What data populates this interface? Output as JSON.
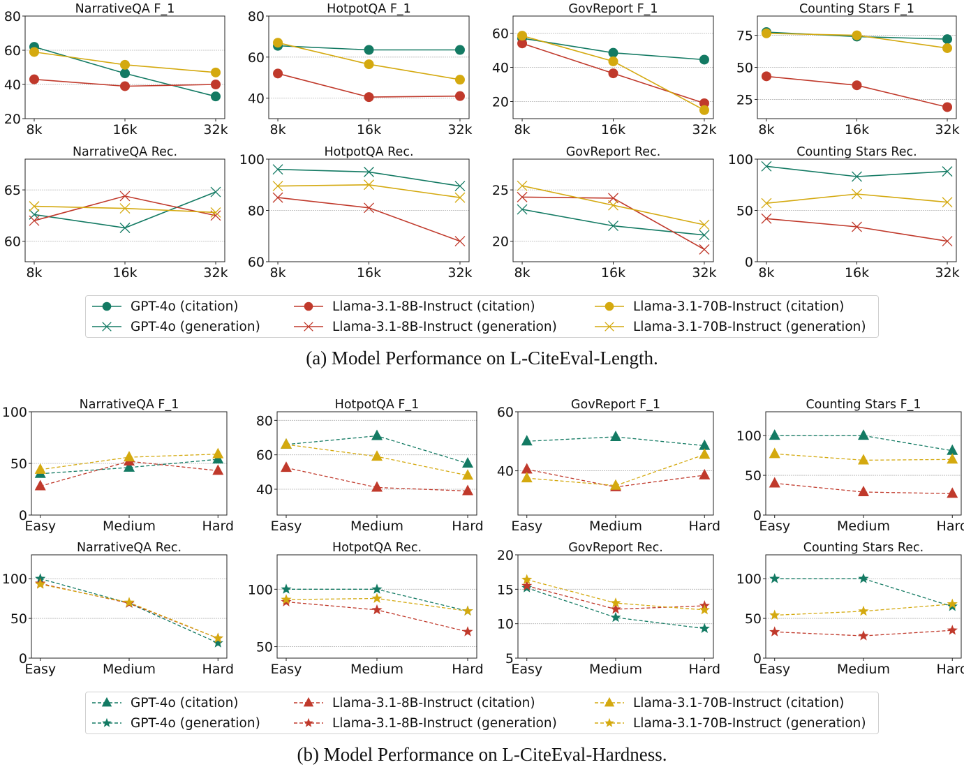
{
  "colors": {
    "gpt4o": "#137a63",
    "llama8b": "#c0392b",
    "llama70b": "#d4a90f",
    "grid": "#b0b0b0"
  },
  "sections": [
    {
      "caption": "(a)  Model Performance on L-CiteEval-Length.",
      "legend": [
        {
          "label": "GPT-4o (citation)",
          "model": "gpt4o",
          "marker": "circle",
          "line": "solid"
        },
        {
          "label": "Llama-3.1-8B-Instruct (citation)",
          "model": "llama8b",
          "marker": "circle",
          "line": "solid"
        },
        {
          "label": "Llama-3.1-70B-Instruct (citation)",
          "model": "llama70b",
          "marker": "circle",
          "line": "solid"
        },
        {
          "label": "GPT-4o (generation)",
          "model": "gpt4o",
          "marker": "x",
          "line": "solid"
        },
        {
          "label": "Llama-3.1-8B-Instruct (generation)",
          "model": "llama8b",
          "marker": "x",
          "line": "solid"
        },
        {
          "label": "Llama-3.1-70B-Instruct (generation)",
          "model": "llama70b",
          "marker": "x",
          "line": "solid"
        }
      ]
    },
    {
      "caption": "(b)  Model Performance on L-CiteEval-Hardness.",
      "legend": [
        {
          "label": "GPT-4o (citation)",
          "model": "gpt4o",
          "marker": "triangle",
          "line": "dashed"
        },
        {
          "label": "Llama-3.1-8B-Instruct (citation)",
          "model": "llama8b",
          "marker": "triangle",
          "line": "dashed"
        },
        {
          "label": "Llama-3.1-70B-Instruct (citation)",
          "model": "llama70b",
          "marker": "triangle",
          "line": "dashed"
        },
        {
          "label": "GPT-4o (generation)",
          "model": "gpt4o",
          "marker": "star",
          "line": "dashed"
        },
        {
          "label": "Llama-3.1-8B-Instruct (generation)",
          "model": "llama8b",
          "marker": "star",
          "line": "dashed"
        },
        {
          "label": "Llama-3.1-70B-Instruct (generation)",
          "model": "llama70b",
          "marker": "star",
          "line": "dashed"
        }
      ]
    }
  ],
  "chart_data": [
    {
      "type": "line",
      "title": "NarrativeQA F_1",
      "categories": [
        "8k",
        "16k",
        "32k"
      ],
      "ylim": [
        20,
        80
      ],
      "yticks": [
        20,
        40,
        60,
        80
      ],
      "grid": true,
      "marker": "circle",
      "line": "solid",
      "series": [
        {
          "name": "GPT-4o (citation)",
          "model": "gpt4o",
          "values": [
            62,
            46.5,
            33
          ]
        },
        {
          "name": "Llama-3.1-8B-Instruct (citation)",
          "model": "llama8b",
          "values": [
            43,
            39,
            40
          ]
        },
        {
          "name": "Llama-3.1-70B-Instruct (citation)",
          "model": "llama70b",
          "values": [
            59,
            51.5,
            47
          ]
        }
      ]
    },
    {
      "type": "line",
      "title": "HotpotQA F_1",
      "categories": [
        "8k",
        "16k",
        "32k"
      ],
      "ylim": [
        30,
        80
      ],
      "yticks": [
        40,
        60,
        80
      ],
      "grid": true,
      "marker": "circle",
      "line": "solid",
      "series": [
        {
          "name": "GPT-4o (citation)",
          "model": "gpt4o",
          "values": [
            65.5,
            63.5,
            63.5
          ]
        },
        {
          "name": "Llama-3.1-8B-Instruct (citation)",
          "model": "llama8b",
          "values": [
            52,
            40.5,
            41
          ]
        },
        {
          "name": "Llama-3.1-70B-Instruct (citation)",
          "model": "llama70b",
          "values": [
            67,
            56.5,
            49
          ]
        }
      ]
    },
    {
      "type": "line",
      "title": "GovReport F_1",
      "categories": [
        "8k",
        "16k",
        "32k"
      ],
      "ylim": [
        10,
        70
      ],
      "yticks": [
        20,
        40,
        60
      ],
      "grid": true,
      "marker": "circle",
      "line": "solid",
      "series": [
        {
          "name": "GPT-4o (citation)",
          "model": "gpt4o",
          "values": [
            57,
            48.5,
            44.5
          ]
        },
        {
          "name": "Llama-3.1-8B-Instruct (citation)",
          "model": "llama8b",
          "values": [
            54,
            36.5,
            19
          ]
        },
        {
          "name": "Llama-3.1-70B-Instruct (citation)",
          "model": "llama70b",
          "values": [
            58.5,
            43.5,
            15
          ]
        }
      ]
    },
    {
      "type": "line",
      "title": "Counting Stars F_1",
      "categories": [
        "8k",
        "16k",
        "32k"
      ],
      "ylim": [
        10,
        90
      ],
      "yticks": [
        25,
        50,
        75
      ],
      "grid": true,
      "marker": "circle",
      "line": "solid",
      "series": [
        {
          "name": "GPT-4o (citation)",
          "model": "gpt4o",
          "values": [
            77.5,
            74,
            72
          ]
        },
        {
          "name": "Llama-3.1-8B-Instruct (citation)",
          "model": "llama8b",
          "values": [
            43,
            36,
            19
          ]
        },
        {
          "name": "Llama-3.1-70B-Instruct (citation)",
          "model": "llama70b",
          "values": [
            76.5,
            75,
            65
          ]
        }
      ]
    },
    {
      "type": "line",
      "title": "NarrativeQA Rec.",
      "categories": [
        "8k",
        "16k",
        "32k"
      ],
      "ylim": [
        58,
        68
      ],
      "yticks": [
        60,
        65
      ],
      "grid": true,
      "marker": "x",
      "line": "solid",
      "series": [
        {
          "name": "GPT-4o (generation)",
          "model": "gpt4o",
          "values": [
            62.6,
            61.3,
            64.8
          ]
        },
        {
          "name": "Llama-3.1-8B-Instruct (generation)",
          "model": "llama8b",
          "values": [
            62,
            64.4,
            62.5
          ]
        },
        {
          "name": "Llama-3.1-70B-Instruct (generation)",
          "model": "llama70b",
          "values": [
            63.4,
            63.2,
            62.8
          ]
        }
      ]
    },
    {
      "type": "line",
      "title": "HotpotQA Rec.",
      "categories": [
        "8k",
        "16k",
        "32k"
      ],
      "ylim": [
        60,
        100
      ],
      "yticks": [
        60,
        80,
        100
      ],
      "grid": true,
      "marker": "x",
      "line": "solid",
      "series": [
        {
          "name": "GPT-4o (generation)",
          "model": "gpt4o",
          "values": [
            96,
            95,
            89.5
          ]
        },
        {
          "name": "Llama-3.1-8B-Instruct (generation)",
          "model": "llama8b",
          "values": [
            85,
            81,
            68
          ]
        },
        {
          "name": "Llama-3.1-70B-Instruct (generation)",
          "model": "llama70b",
          "values": [
            89.5,
            90,
            85
          ]
        }
      ]
    },
    {
      "type": "line",
      "title": "GovReport Rec.",
      "categories": [
        "8k",
        "16k",
        "32k"
      ],
      "ylim": [
        18,
        28
      ],
      "yticks": [
        20,
        25
      ],
      "grid": true,
      "marker": "x",
      "line": "solid",
      "series": [
        {
          "name": "GPT-4o (generation)",
          "model": "gpt4o",
          "values": [
            23.1,
            21.5,
            20.6
          ]
        },
        {
          "name": "Llama-3.1-8B-Instruct (generation)",
          "model": "llama8b",
          "values": [
            24.3,
            24.2,
            19.2
          ]
        },
        {
          "name": "Llama-3.1-70B-Instruct (generation)",
          "model": "llama70b",
          "values": [
            25.4,
            23.5,
            21.6
          ]
        }
      ]
    },
    {
      "type": "line",
      "title": "Counting Stars Rec.",
      "categories": [
        "8k",
        "16k",
        "32k"
      ],
      "ylim": [
        0,
        100
      ],
      "yticks": [
        0,
        50,
        100
      ],
      "grid": true,
      "marker": "x",
      "line": "solid",
      "series": [
        {
          "name": "GPT-4o (generation)",
          "model": "gpt4o",
          "values": [
            93,
            83,
            88
          ]
        },
        {
          "name": "Llama-3.1-8B-Instruct (generation)",
          "model": "llama8b",
          "values": [
            42,
            34,
            20
          ]
        },
        {
          "name": "Llama-3.1-70B-Instruct (generation)",
          "model": "llama70b",
          "values": [
            57,
            66,
            58
          ]
        }
      ]
    },
    {
      "type": "line",
      "title": "NarrativeQA F_1",
      "categories": [
        "Easy",
        "Medium",
        "Hard"
      ],
      "ylim": [
        0,
        100
      ],
      "yticks": [
        0,
        50,
        100
      ],
      "grid": true,
      "marker": "triangle",
      "line": "dashed",
      "series": [
        {
          "name": "GPT-4o (citation)",
          "model": "gpt4o",
          "values": [
            40,
            46,
            54
          ]
        },
        {
          "name": "Llama-3.1-8B-Instruct (citation)",
          "model": "llama8b",
          "values": [
            28,
            52,
            43
          ]
        },
        {
          "name": "Llama-3.1-70B-Instruct (citation)",
          "model": "llama70b",
          "values": [
            44,
            56,
            59
          ]
        }
      ]
    },
    {
      "type": "line",
      "title": "HotpotQA F_1",
      "categories": [
        "Easy",
        "Medium",
        "Hard"
      ],
      "ylim": [
        25,
        85
      ],
      "yticks": [
        40,
        60,
        80
      ],
      "grid": true,
      "marker": "triangle",
      "line": "dashed",
      "series": [
        {
          "name": "GPT-4o (citation)",
          "model": "gpt4o",
          "values": [
            66,
            71,
            55
          ]
        },
        {
          "name": "Llama-3.1-8B-Instruct (citation)",
          "model": "llama8b",
          "values": [
            52.5,
            41,
            39
          ]
        },
        {
          "name": "Llama-3.1-70B-Instruct (citation)",
          "model": "llama70b",
          "values": [
            66,
            59,
            48
          ]
        }
      ]
    },
    {
      "type": "line",
      "title": "GovReport F_1",
      "categories": [
        "Easy",
        "Medium",
        "Hard"
      ],
      "ylim": [
        25,
        60
      ],
      "yticks": [
        40,
        60
      ],
      "grid": true,
      "marker": "triangle",
      "line": "dashed",
      "series": [
        {
          "name": "GPT-4o (citation)",
          "model": "gpt4o",
          "values": [
            50,
            51.5,
            48.5
          ]
        },
        {
          "name": "Llama-3.1-8B-Instruct (citation)",
          "model": "llama8b",
          "values": [
            40.5,
            34.5,
            38.5
          ]
        },
        {
          "name": "Llama-3.1-70B-Instruct (citation)",
          "model": "llama70b",
          "values": [
            37.5,
            35,
            45.5
          ]
        }
      ]
    },
    {
      "type": "line",
      "title": "Counting Stars F_1",
      "categories": [
        "Easy",
        "Medium",
        "Hard"
      ],
      "ylim": [
        0,
        130
      ],
      "yticks": [
        0,
        50,
        100
      ],
      "grid": true,
      "marker": "triangle",
      "line": "dashed",
      "series": [
        {
          "name": "GPT-4o (citation)",
          "model": "gpt4o",
          "values": [
            100,
            100,
            81
          ]
        },
        {
          "name": "Llama-3.1-8B-Instruct (citation)",
          "model": "llama8b",
          "values": [
            40,
            29,
            27
          ]
        },
        {
          "name": "Llama-3.1-70B-Instruct (citation)",
          "model": "llama70b",
          "values": [
            77,
            69,
            70
          ]
        }
      ]
    },
    {
      "type": "line",
      "title": "NarrativeQA Rec.",
      "categories": [
        "Easy",
        "Medium",
        "Hard"
      ],
      "ylim": [
        0,
        130
      ],
      "yticks": [
        0,
        50,
        100
      ],
      "grid": true,
      "marker": "star",
      "line": "dashed",
      "series": [
        {
          "name": "GPT-4o (generation)",
          "model": "gpt4o",
          "values": [
            100,
            69,
            19
          ]
        },
        {
          "name": "Llama-3.1-8B-Instruct (generation)",
          "model": "llama8b",
          "values": [
            94,
            69,
            25
          ]
        },
        {
          "name": "Llama-3.1-70B-Instruct (generation)",
          "model": "llama70b",
          "values": [
            93,
            70,
            25
          ]
        }
      ]
    },
    {
      "type": "line",
      "title": "HotpotQA Rec.",
      "categories": [
        "Easy",
        "Medium",
        "Hard"
      ],
      "ylim": [
        40,
        130
      ],
      "yticks": [
        50,
        100
      ],
      "grid": true,
      "marker": "star",
      "line": "dashed",
      "series": [
        {
          "name": "GPT-4o (generation)",
          "model": "gpt4o",
          "values": [
            100,
            100,
            81
          ]
        },
        {
          "name": "Llama-3.1-8B-Instruct (generation)",
          "model": "llama8b",
          "values": [
            89,
            82,
            63
          ]
        },
        {
          "name": "Llama-3.1-70B-Instruct (generation)",
          "model": "llama70b",
          "values": [
            91,
            92,
            81
          ]
        }
      ]
    },
    {
      "type": "line",
      "title": "GovReport Rec.",
      "categories": [
        "Easy",
        "Medium",
        "Hard"
      ],
      "ylim": [
        5,
        20
      ],
      "yticks": [
        5,
        10,
        15,
        20
      ],
      "grid": true,
      "marker": "star",
      "line": "dashed",
      "series": [
        {
          "name": "GPT-4o (generation)",
          "model": "gpt4o",
          "values": [
            15.2,
            10.9,
            9.3
          ]
        },
        {
          "name": "Llama-3.1-8B-Instruct (generation)",
          "model": "llama8b",
          "values": [
            15.5,
            12.1,
            12.6
          ]
        },
        {
          "name": "Llama-3.1-70B-Instruct (generation)",
          "model": "llama70b",
          "values": [
            16.4,
            13.0,
            12.0
          ]
        }
      ]
    },
    {
      "type": "line",
      "title": "Counting Stars Rec.",
      "categories": [
        "Easy",
        "Medium",
        "Hard"
      ],
      "ylim": [
        0,
        130
      ],
      "yticks": [
        0,
        50,
        100
      ],
      "grid": true,
      "marker": "star",
      "line": "dashed",
      "series": [
        {
          "name": "GPT-4o (generation)",
          "model": "gpt4o",
          "values": [
            100,
            100,
            65
          ]
        },
        {
          "name": "Llama-3.1-8B-Instruct (generation)",
          "model": "llama8b",
          "values": [
            33,
            28,
            35
          ]
        },
        {
          "name": "Llama-3.1-70B-Instruct (generation)",
          "model": "llama70b",
          "values": [
            54,
            59,
            68
          ]
        }
      ]
    }
  ]
}
